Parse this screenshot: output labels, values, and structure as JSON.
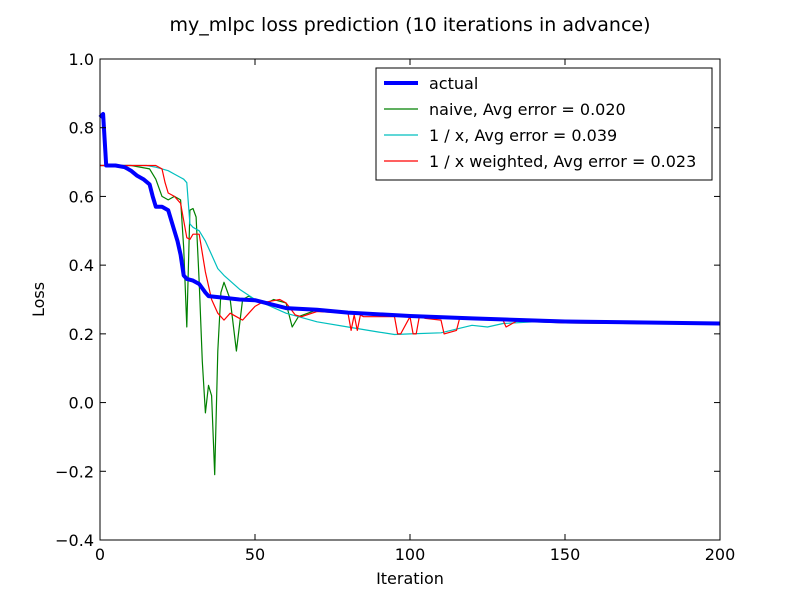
{
  "chart_data": {
    "type": "line",
    "title": "my_mlpc loss prediction (10 iterations in advance)",
    "xlabel": "Iteration",
    "ylabel": "Loss",
    "xlim": [
      0,
      200
    ],
    "ylim": [
      -0.4,
      1.0
    ],
    "xticks": [
      0,
      50,
      100,
      150,
      200
    ],
    "yticks": [
      -0.4,
      -0.2,
      0.0,
      0.2,
      0.4,
      0.6,
      0.8,
      1.0
    ],
    "xtick_labels": [
      "0",
      "50",
      "100",
      "150",
      "200"
    ],
    "ytick_labels": [
      "−0.4",
      "−0.2",
      "0.0",
      "0.2",
      "0.4",
      "0.6",
      "0.8",
      "1.0"
    ],
    "grid": false,
    "legend_position": "top-right",
    "series": [
      {
        "name": "actual",
        "color": "#0000ff",
        "x": [
          0,
          1,
          2,
          5,
          8,
          10,
          12,
          14,
          16,
          17,
          18,
          20,
          22,
          24,
          25,
          26,
          27,
          28,
          30,
          32,
          34,
          35,
          40,
          45,
          50,
          60,
          70,
          80,
          100,
          120,
          150,
          200
        ],
        "y": [
          0.83,
          0.84,
          0.69,
          0.69,
          0.685,
          0.675,
          0.66,
          0.65,
          0.635,
          0.6,
          0.57,
          0.57,
          0.56,
          0.5,
          0.47,
          0.43,
          0.37,
          0.36,
          0.355,
          0.345,
          0.32,
          0.31,
          0.305,
          0.3,
          0.298,
          0.275,
          0.27,
          0.262,
          0.252,
          0.245,
          0.236,
          0.23
        ]
      },
      {
        "name": "naive, Avg error = 0.020",
        "color": "#008000",
        "x": [
          0,
          10,
          16,
          18,
          20,
          22,
          24,
          26,
          27,
          28,
          29,
          30,
          31,
          32,
          33,
          34,
          35,
          36,
          37,
          38,
          39,
          40,
          42,
          44,
          46,
          48,
          50,
          54,
          56,
          60,
          62,
          64,
          70,
          80,
          100,
          120,
          150,
          200
        ],
        "y": [
          0.69,
          0.69,
          0.68,
          0.65,
          0.6,
          0.59,
          0.6,
          0.59,
          0.45,
          0.22,
          0.56,
          0.565,
          0.54,
          0.35,
          0.12,
          -0.03,
          0.05,
          0.02,
          -0.21,
          0.15,
          0.32,
          0.35,
          0.3,
          0.15,
          0.3,
          0.31,
          0.3,
          0.29,
          0.3,
          0.29,
          0.22,
          0.25,
          0.27,
          0.262,
          0.252,
          0.245,
          0.236,
          0.23
        ]
      },
      {
        "name": "1 / x, Avg error = 0.039",
        "color": "#00bfbf",
        "x": [
          0,
          10,
          15,
          18,
          20,
          22,
          24,
          26,
          27,
          28,
          29,
          30,
          32,
          34,
          36,
          38,
          40,
          45,
          50,
          60,
          70,
          80,
          90,
          95,
          100,
          110,
          120,
          125,
          130,
          140,
          150,
          200
        ],
        "y": [
          0.69,
          0.69,
          0.69,
          0.685,
          0.68,
          0.675,
          0.665,
          0.655,
          0.65,
          0.64,
          0.52,
          0.51,
          0.5,
          0.47,
          0.43,
          0.39,
          0.37,
          0.33,
          0.3,
          0.26,
          0.235,
          0.22,
          0.205,
          0.198,
          0.2,
          0.203,
          0.225,
          0.22,
          0.23,
          0.235,
          0.232,
          0.228
        ]
      },
      {
        "name": "1 / x weighted, Avg error = 0.023",
        "color": "#ff0000",
        "x": [
          0,
          10,
          15,
          18,
          20,
          21,
          22,
          24,
          26,
          28,
          29,
          30,
          32,
          34,
          36,
          38,
          40,
          42,
          44,
          46,
          48,
          50,
          52,
          55,
          58,
          60,
          63,
          65,
          70,
          80,
          81,
          82,
          83,
          84,
          85,
          90,
          95,
          96,
          97,
          100,
          101,
          102,
          103,
          105,
          110,
          111,
          115,
          116,
          120,
          130,
          131,
          133,
          135,
          140,
          150,
          200
        ],
        "y": [
          0.69,
          0.69,
          0.69,
          0.69,
          0.68,
          0.64,
          0.61,
          0.6,
          0.58,
          0.48,
          0.475,
          0.49,
          0.49,
          0.38,
          0.3,
          0.26,
          0.24,
          0.26,
          0.25,
          0.24,
          0.26,
          0.28,
          0.29,
          0.295,
          0.3,
          0.29,
          0.255,
          0.25,
          0.265,
          0.26,
          0.21,
          0.255,
          0.21,
          0.255,
          0.25,
          0.25,
          0.25,
          0.2,
          0.2,
          0.25,
          0.2,
          0.2,
          0.25,
          0.245,
          0.24,
          0.2,
          0.21,
          0.245,
          0.245,
          0.24,
          0.22,
          0.23,
          0.24,
          0.236,
          0.232,
          0.228
        ]
      }
    ]
  }
}
